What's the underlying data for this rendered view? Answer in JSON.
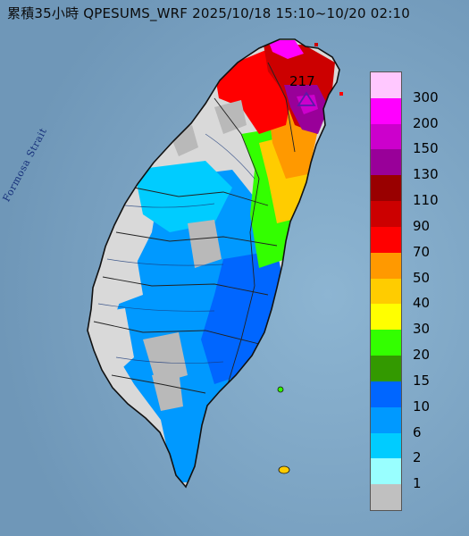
{
  "title": "累積35小時 QPESUMS_WRF 2025/10/18 15:10~10/20 02:10",
  "strait_label": "Formosa Strait",
  "peak": {
    "value": "217",
    "marker": "triangle-marker"
  },
  "legend": {
    "labels": [
      "300",
      "200",
      "150",
      "130",
      "110",
      "90",
      "70",
      "50",
      "40",
      "30",
      "20",
      "15",
      "10",
      "6",
      "2",
      "1"
    ],
    "colors": [
      "#ffc8ff",
      "#ff00ff",
      "#cc00cc",
      "#990099",
      "#990000",
      "#cc0000",
      "#ff0000",
      "#ff9900",
      "#ffcc00",
      "#ffff00",
      "#33ff00",
      "#339900",
      "#0066ff",
      "#0099ff",
      "#00ccff",
      "#99ffff",
      "#c0c0c0"
    ]
  },
  "colors": {
    "sea": "#7fa6c4",
    "land": "#d9d9d9",
    "no_rain": "#b9b9b9",
    "border": "#111111"
  }
}
